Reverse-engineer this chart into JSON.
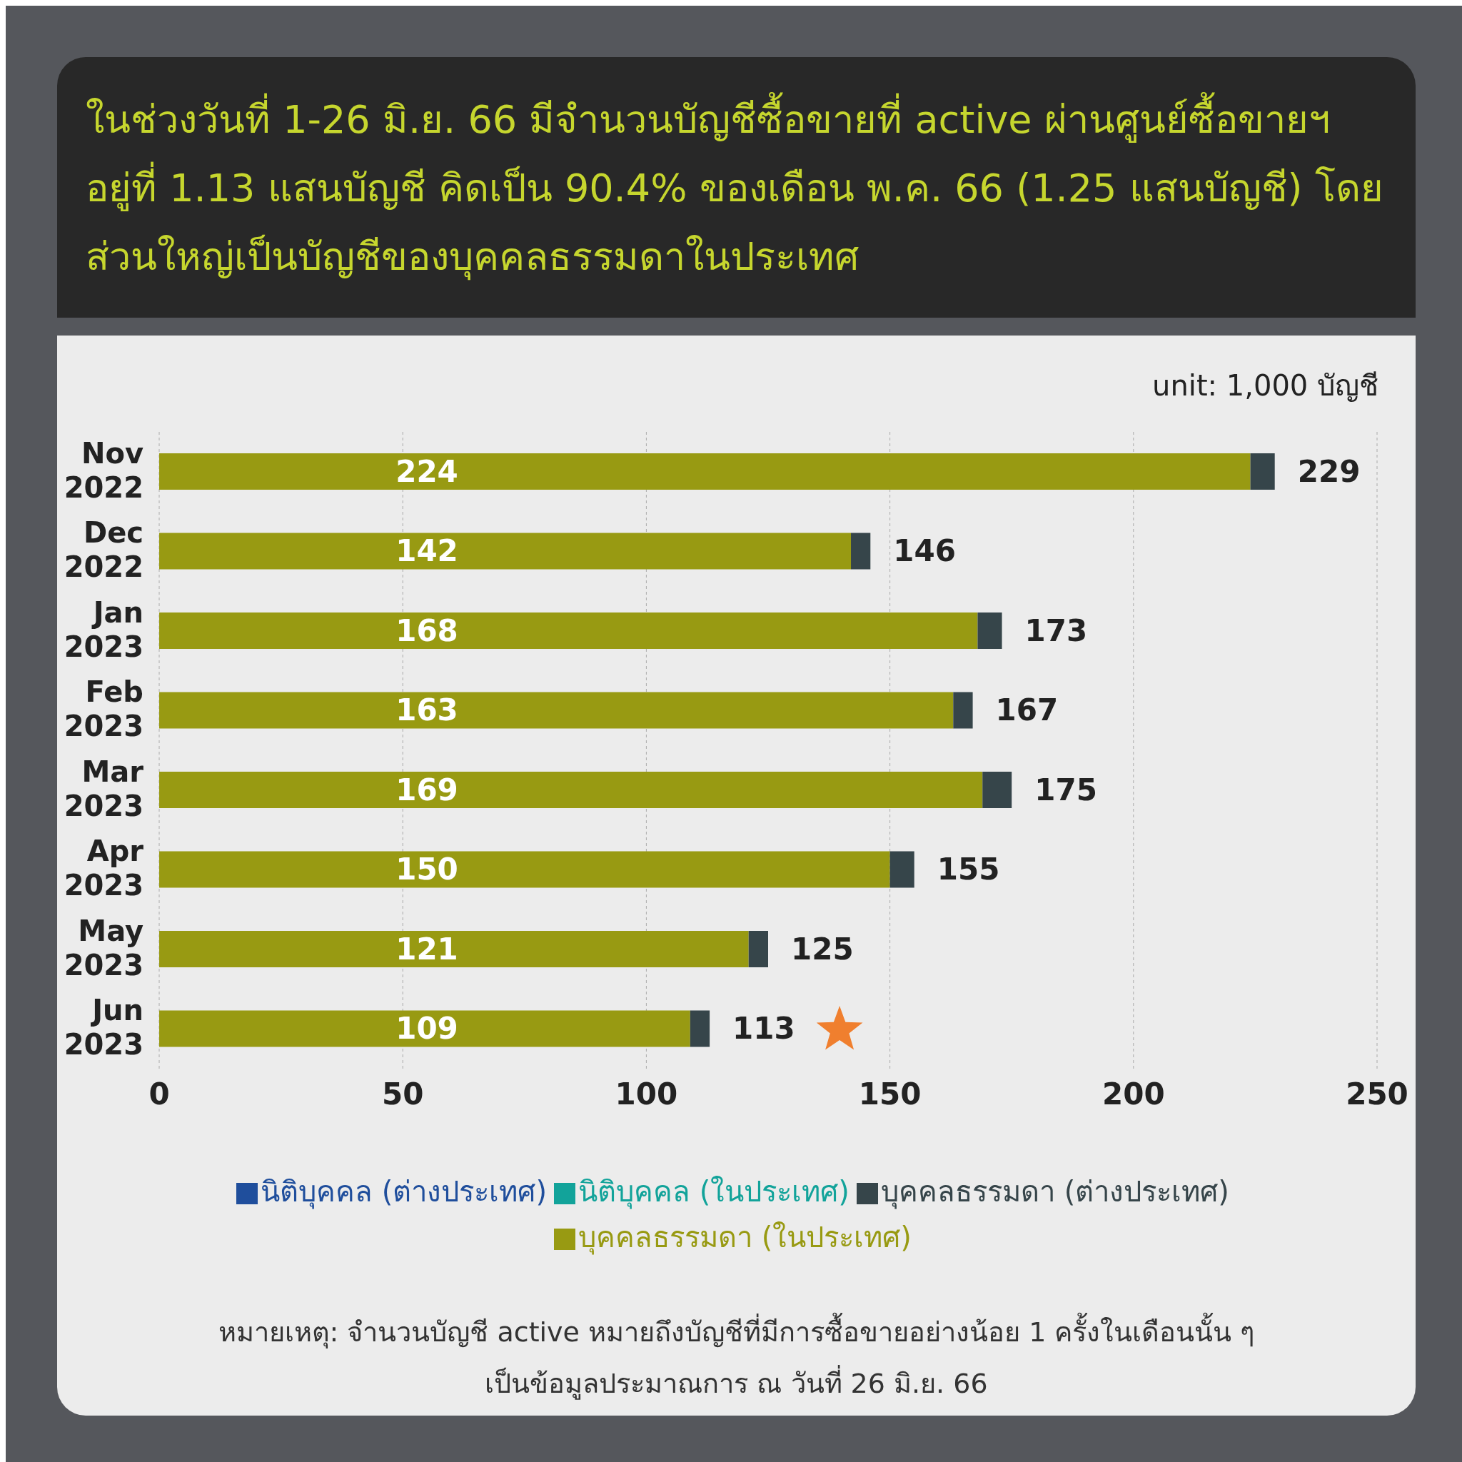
{
  "chart_data": {
    "type": "bar",
    "orientation": "horizontal",
    "stacked": true,
    "title": "ในช่วงวันที่ 1-26 มิ.ย. 66 มีจำนวนบัญชีซื้อขายที่ active ผ่านศูนย์ซื้อขายฯ อยู่ที่ 1.13 แสนบัญชี คิดเป็น 90.4% ของเดือน พ.ค. 66 (1.25 แสนบัญชี) โดยส่วนใหญ่เป็นบัญชีของบุคคลธรรมดาในประเทศ",
    "categories": [
      "Nov 2022",
      "Dec 2022",
      "Jan 2023",
      "Feb 2023",
      "Mar 2023",
      "Apr 2023",
      "May 2023",
      "Jun 2023"
    ],
    "series": [
      {
        "name": "บุคคลธรรมดา (ในประเทศ)",
        "color": "#989a12",
        "values": [
          224,
          142,
          168,
          163,
          169,
          150,
          121,
          109
        ],
        "value_labels": [
          "224",
          "142",
          "168",
          "163",
          "169",
          "150",
          "121",
          "109"
        ]
      },
      {
        "name": "บุคคลธรรมดา (ต่างประเทศ)",
        "color": "#36454a",
        "values": [
          5,
          4,
          5,
          4,
          6,
          5,
          4,
          4
        ]
      },
      {
        "name": "นิติบุคคล (ในประเทศ)",
        "color": "#12a39a",
        "values": [
          null,
          null,
          null,
          null,
          null,
          null,
          null,
          null
        ]
      },
      {
        "name": "นิติบุคคล (ต่างประเทศ)",
        "color": "#1f4e9c",
        "values": [
          null,
          null,
          null,
          null,
          null,
          null,
          null,
          null
        ]
      }
    ],
    "totals": [
      "229",
      "146",
      "173",
      "167",
      "175",
      "155",
      "125",
      "113"
    ],
    "xlim": [
      0,
      250
    ],
    "xticks": [
      0,
      50,
      100,
      150,
      200,
      250
    ],
    "grid": "x",
    "legend": "bottom",
    "annotations": [
      "unit: 1,000 บัญชี",
      "หมายเหตุ: จำนวนบัญชี active หมายถึงบัญชีที่มีการซื้อขายอย่างน้อย 1 ครั้งในเดือนนั้น ๆ",
      "เป็นข้อมูลประมาณการ ณ วันที่ 26 มิ.ย. 66"
    ]
  }
}
